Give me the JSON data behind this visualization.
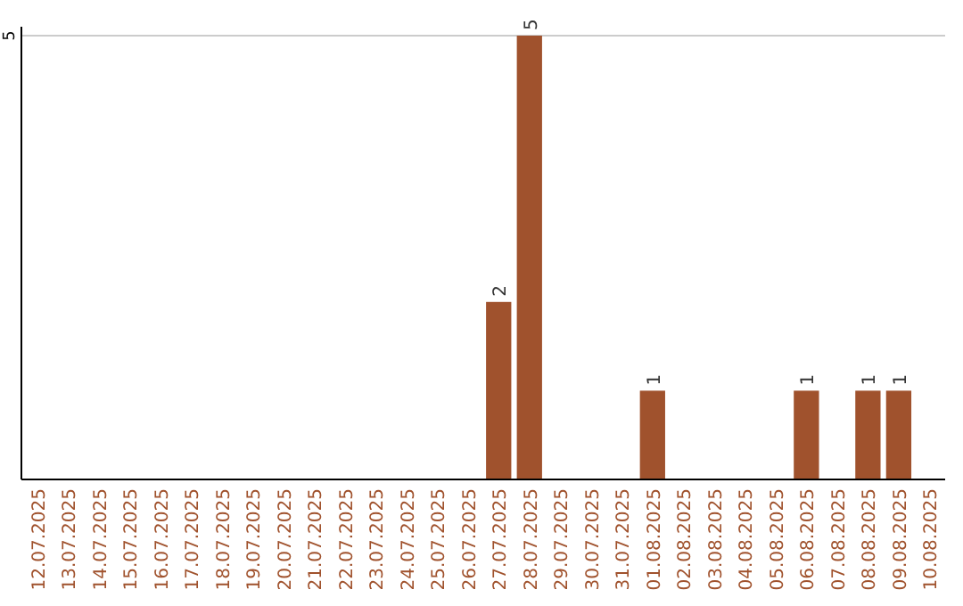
{
  "chart_data": {
    "type": "bar",
    "categories": [
      "12.07.2025",
      "13.07.2025",
      "14.07.2025",
      "15.07.2025",
      "16.07.2025",
      "17.07.2025",
      "18.07.2025",
      "19.07.2025",
      "20.07.2025",
      "21.07.2025",
      "22.07.2025",
      "23.07.2025",
      "24.07.2025",
      "25.07.2025",
      "26.07.2025",
      "27.07.2025",
      "28.07.2025",
      "29.07.2025",
      "30.07.2025",
      "31.07.2025",
      "01.08.2025",
      "02.08.2025",
      "03.08.2025",
      "04.08.2025",
      "05.08.2025",
      "06.08.2025",
      "07.08.2025",
      "08.08.2025",
      "09.08.2025",
      "10.08.2025"
    ],
    "values": [
      null,
      null,
      null,
      null,
      null,
      null,
      null,
      null,
      null,
      null,
      null,
      null,
      null,
      null,
      null,
      2,
      5,
      null,
      null,
      null,
      1,
      null,
      null,
      null,
      null,
      1,
      null,
      1,
      1,
      null
    ],
    "data_labels": true,
    "color": "#a0522d",
    "ref_lines": [
      {
        "axis": "y",
        "value": 5,
        "label": "5",
        "color": "#cccccc"
      }
    ]
  }
}
